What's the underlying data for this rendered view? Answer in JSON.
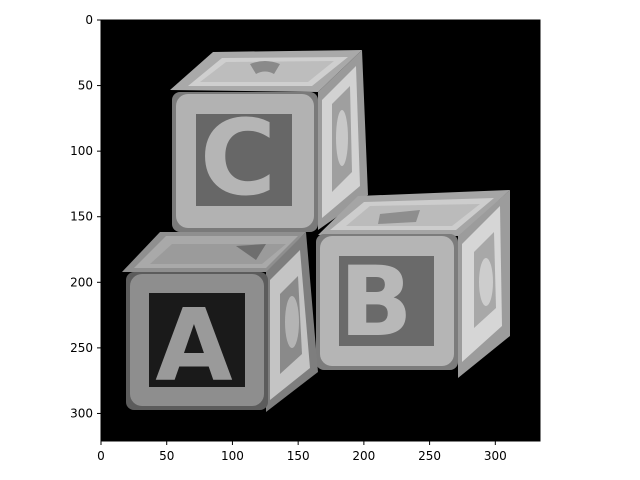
{
  "image_content": "three gray toy alphabet blocks (C on top-left, A bottom-left, B bottom-right) on black background",
  "colors": {
    "background": "#000000",
    "frame": "#000000",
    "figure_bg": "#ffffff"
  },
  "x_axis": {
    "range": [
      0,
      334
    ],
    "ticks": [
      {
        "value": 0,
        "label": "0"
      },
      {
        "value": 50,
        "label": "50"
      },
      {
        "value": 100,
        "label": "100"
      },
      {
        "value": 150,
        "label": "150"
      },
      {
        "value": 200,
        "label": "200"
      },
      {
        "value": 250,
        "label": "250"
      },
      {
        "value": 300,
        "label": "300"
      }
    ]
  },
  "y_axis": {
    "range": [
      0,
      321
    ],
    "inverted": true,
    "ticks": [
      {
        "value": 0,
        "label": "0"
      },
      {
        "value": 50,
        "label": "50"
      },
      {
        "value": 100,
        "label": "100"
      },
      {
        "value": 150,
        "label": "150"
      },
      {
        "value": 200,
        "label": "200"
      },
      {
        "value": 250,
        "label": "250"
      },
      {
        "value": 300,
        "label": "300"
      }
    ]
  },
  "blocks": [
    {
      "letter": "C"
    },
    {
      "letter": "A"
    },
    {
      "letter": "B"
    }
  ]
}
